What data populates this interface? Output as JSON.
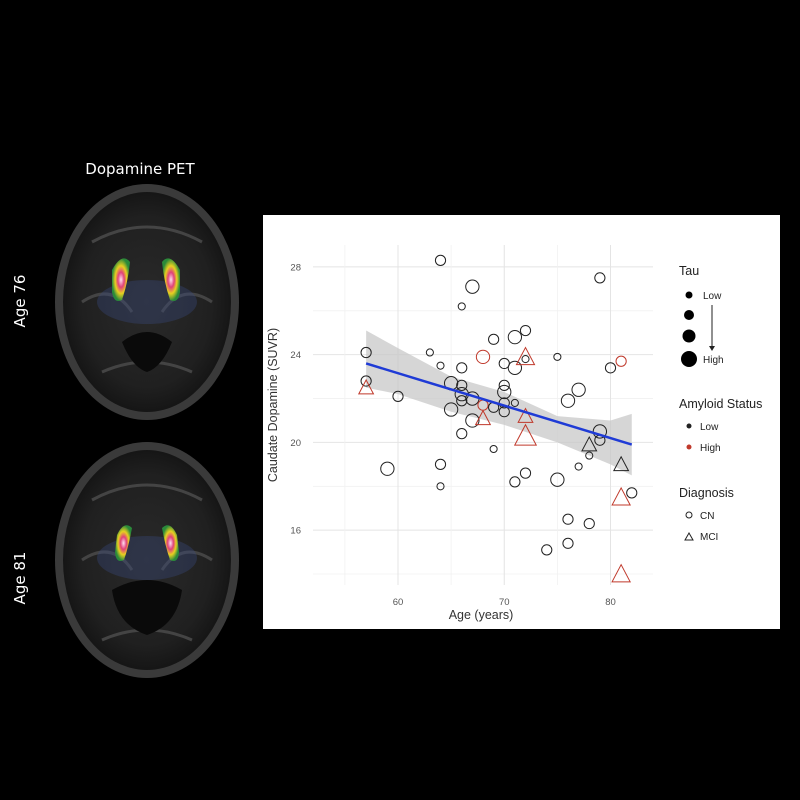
{
  "panel_title": "Dopamine PET",
  "scan_labels": [
    "Age 76",
    "Age 81"
  ],
  "chart_data": {
    "type": "scatter",
    "xlabel": "Age (years)",
    "ylabel": "Caudate Dopamine (SUVR)",
    "xlim": [
      52,
      84
    ],
    "ylim": [
      13.5,
      29
    ],
    "xticks": [
      60,
      70,
      80
    ],
    "yticks": [
      16,
      20,
      24,
      28
    ],
    "grid": true,
    "legend_position": "right",
    "colors": {
      "low": "#222222",
      "high": "#c0392b",
      "fit": "#1f3bd6",
      "band": "#c8c8c8"
    },
    "fit_line": {
      "x": [
        57,
        82
      ],
      "y": [
        23.6,
        19.9
      ]
    },
    "confidence_band": {
      "x": [
        57,
        60,
        65,
        70,
        75,
        80,
        82
      ],
      "lower": [
        22.5,
        22.2,
        21.4,
        20.8,
        20.0,
        19.0,
        18.5
      ],
      "upper": [
        25.1,
        24.3,
        23.0,
        22.3,
        21.2,
        21.0,
        21.3
      ]
    },
    "points": [
      {
        "x": 57,
        "y": 24.1,
        "tau": 2,
        "amyloid": "Low",
        "dx": "CN"
      },
      {
        "x": 57,
        "y": 22.8,
        "tau": 2,
        "amyloid": "Low",
        "dx": "CN"
      },
      {
        "x": 57,
        "y": 22.5,
        "tau": 3,
        "amyloid": "High",
        "dx": "MCI"
      },
      {
        "x": 60,
        "y": 22.1,
        "tau": 2,
        "amyloid": "Low",
        "dx": "CN"
      },
      {
        "x": 59,
        "y": 18.8,
        "tau": 3,
        "amyloid": "Low",
        "dx": "CN"
      },
      {
        "x": 63,
        "y": 24.1,
        "tau": 1,
        "amyloid": "Low",
        "dx": "CN"
      },
      {
        "x": 64,
        "y": 28.3,
        "tau": 2,
        "amyloid": "Low",
        "dx": "CN"
      },
      {
        "x": 64,
        "y": 19.0,
        "tau": 2,
        "amyloid": "Low",
        "dx": "CN"
      },
      {
        "x": 64,
        "y": 18.0,
        "tau": 1,
        "amyloid": "Low",
        "dx": "CN"
      },
      {
        "x": 64,
        "y": 23.5,
        "tau": 1,
        "amyloid": "Low",
        "dx": "CN"
      },
      {
        "x": 65,
        "y": 22.7,
        "tau": 3,
        "amyloid": "Low",
        "dx": "CN"
      },
      {
        "x": 65,
        "y": 21.5,
        "tau": 3,
        "amyloid": "Low",
        "dx": "CN"
      },
      {
        "x": 66,
        "y": 26.2,
        "tau": 1,
        "amyloid": "Low",
        "dx": "CN"
      },
      {
        "x": 66,
        "y": 23.4,
        "tau": 2,
        "amyloid": "Low",
        "dx": "CN"
      },
      {
        "x": 66,
        "y": 22.6,
        "tau": 2,
        "amyloid": "Low",
        "dx": "CN"
      },
      {
        "x": 66,
        "y": 22.2,
        "tau": 3,
        "amyloid": "Low",
        "dx": "CN"
      },
      {
        "x": 66,
        "y": 21.9,
        "tau": 2,
        "amyloid": "Low",
        "dx": "CN"
      },
      {
        "x": 66,
        "y": 20.4,
        "tau": 2,
        "amyloid": "Low",
        "dx": "CN"
      },
      {
        "x": 67,
        "y": 27.1,
        "tau": 3,
        "amyloid": "Low",
        "dx": "CN"
      },
      {
        "x": 67,
        "y": 22.0,
        "tau": 3,
        "amyloid": "Low",
        "dx": "CN"
      },
      {
        "x": 67,
        "y": 21.0,
        "tau": 3,
        "amyloid": "Low",
        "dx": "CN"
      },
      {
        "x": 68,
        "y": 23.9,
        "tau": 3,
        "amyloid": "High",
        "dx": "CN"
      },
      {
        "x": 68,
        "y": 21.7,
        "tau": 2,
        "amyloid": "High",
        "dx": "CN"
      },
      {
        "x": 68,
        "y": 21.1,
        "tau": 3,
        "amyloid": "High",
        "dx": "MCI"
      },
      {
        "x": 69,
        "y": 24.7,
        "tau": 2,
        "amyloid": "Low",
        "dx": "CN"
      },
      {
        "x": 69,
        "y": 21.6,
        "tau": 2,
        "amyloid": "Low",
        "dx": "CN"
      },
      {
        "x": 69,
        "y": 19.7,
        "tau": 1,
        "amyloid": "Low",
        "dx": "CN"
      },
      {
        "x": 70,
        "y": 23.6,
        "tau": 2,
        "amyloid": "Low",
        "dx": "CN"
      },
      {
        "x": 70,
        "y": 22.6,
        "tau": 2,
        "amyloid": "Low",
        "dx": "CN"
      },
      {
        "x": 70,
        "y": 22.3,
        "tau": 3,
        "amyloid": "Low",
        "dx": "CN"
      },
      {
        "x": 70,
        "y": 21.8,
        "tau": 2,
        "amyloid": "Low",
        "dx": "CN"
      },
      {
        "x": 70,
        "y": 21.4,
        "tau": 2,
        "amyloid": "Low",
        "dx": "CN"
      },
      {
        "x": 71,
        "y": 24.8,
        "tau": 3,
        "amyloid": "Low",
        "dx": "CN"
      },
      {
        "x": 71,
        "y": 23.4,
        "tau": 3,
        "amyloid": "Low",
        "dx": "CN"
      },
      {
        "x": 71,
        "y": 21.8,
        "tau": 1,
        "amyloid": "Low",
        "dx": "CN"
      },
      {
        "x": 71,
        "y": 18.2,
        "tau": 2,
        "amyloid": "Low",
        "dx": "CN"
      },
      {
        "x": 72,
        "y": 25.1,
        "tau": 2,
        "amyloid": "Low",
        "dx": "CN"
      },
      {
        "x": 72,
        "y": 23.9,
        "tau": 4,
        "amyloid": "High",
        "dx": "MCI"
      },
      {
        "x": 72,
        "y": 23.8,
        "tau": 1,
        "amyloid": "Low",
        "dx": "CN"
      },
      {
        "x": 72,
        "y": 21.2,
        "tau": 3,
        "amyloid": "High",
        "dx": "MCI"
      },
      {
        "x": 72,
        "y": 20.3,
        "tau": 5,
        "amyloid": "High",
        "dx": "MCI"
      },
      {
        "x": 72,
        "y": 18.6,
        "tau": 2,
        "amyloid": "Low",
        "dx": "CN"
      },
      {
        "x": 74,
        "y": 15.1,
        "tau": 2,
        "amyloid": "Low",
        "dx": "CN"
      },
      {
        "x": 75,
        "y": 23.9,
        "tau": 1,
        "amyloid": "Low",
        "dx": "CN"
      },
      {
        "x": 75,
        "y": 18.3,
        "tau": 3,
        "amyloid": "Low",
        "dx": "CN"
      },
      {
        "x": 76,
        "y": 21.9,
        "tau": 3,
        "amyloid": "Low",
        "dx": "CN"
      },
      {
        "x": 76,
        "y": 16.5,
        "tau": 2,
        "amyloid": "Low",
        "dx": "CN"
      },
      {
        "x": 76,
        "y": 15.4,
        "tau": 2,
        "amyloid": "Low",
        "dx": "CN"
      },
      {
        "x": 77,
        "y": 22.4,
        "tau": 3,
        "amyloid": "Low",
        "dx": "CN"
      },
      {
        "x": 77,
        "y": 18.9,
        "tau": 1,
        "amyloid": "Low",
        "dx": "CN"
      },
      {
        "x": 78,
        "y": 19.9,
        "tau": 3,
        "amyloid": "Low",
        "dx": "MCI"
      },
      {
        "x": 78,
        "y": 19.4,
        "tau": 1,
        "amyloid": "Low",
        "dx": "CN"
      },
      {
        "x": 78,
        "y": 16.3,
        "tau": 2,
        "amyloid": "Low",
        "dx": "CN"
      },
      {
        "x": 79,
        "y": 27.5,
        "tau": 2,
        "amyloid": "Low",
        "dx": "CN"
      },
      {
        "x": 79,
        "y": 20.5,
        "tau": 3,
        "amyloid": "Low",
        "dx": "CN"
      },
      {
        "x": 79,
        "y": 20.1,
        "tau": 2,
        "amyloid": "Low",
        "dx": "CN"
      },
      {
        "x": 80,
        "y": 23.4,
        "tau": 2,
        "amyloid": "Low",
        "dx": "CN"
      },
      {
        "x": 81,
        "y": 23.7,
        "tau": 2,
        "amyloid": "High",
        "dx": "CN"
      },
      {
        "x": 81,
        "y": 19.0,
        "tau": 3,
        "amyloid": "Low",
        "dx": "MCI"
      },
      {
        "x": 81,
        "y": 17.5,
        "tau": 4,
        "amyloid": "High",
        "dx": "MCI"
      },
      {
        "x": 81,
        "y": 14.0,
        "tau": 4,
        "amyloid": "High",
        "dx": "MCI"
      },
      {
        "x": 82,
        "y": 17.7,
        "tau": 2,
        "amyloid": "Low",
        "dx": "CN"
      }
    ],
    "legend": {
      "tau": {
        "title": "Tau",
        "low_label": "Low",
        "high_label": "High"
      },
      "amyloid": {
        "title": "Amyloid Status",
        "items": [
          "Low",
          "High"
        ]
      },
      "diagnosis": {
        "title": "Diagnosis",
        "items": [
          "CN",
          "MCI"
        ]
      }
    }
  }
}
